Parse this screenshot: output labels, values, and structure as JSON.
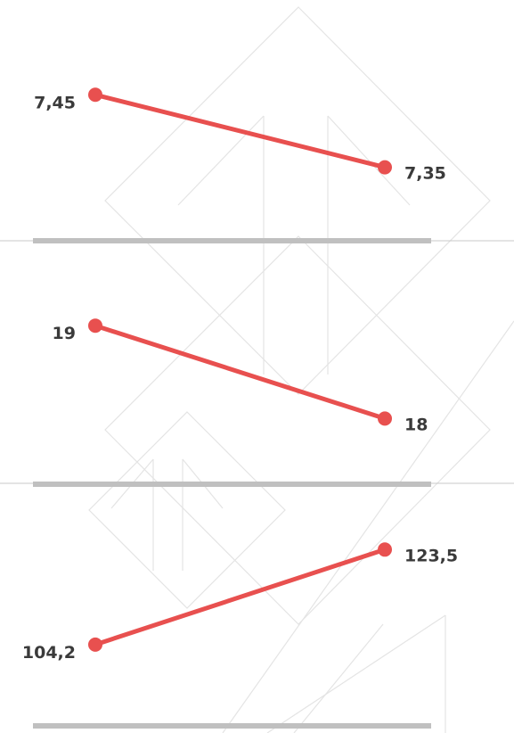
{
  "colors": {
    "line": "#e8504f",
    "baseline": "#c0c0c0",
    "divider": "#c8c8c8",
    "pattern": "#e4e4e4",
    "label": "#3a3a3a"
  },
  "chart_data": [
    {
      "type": "line",
      "x": [
        1,
        2
      ],
      "values": [
        7.45,
        7.35
      ],
      "data_labels": [
        "7,45",
        "7,35"
      ],
      "ylim": [
        7.32,
        7.47
      ]
    },
    {
      "type": "line",
      "x": [
        1,
        2
      ],
      "values": [
        19,
        18
      ],
      "data_labels": [
        "19",
        "18"
      ],
      "ylim": [
        17.85,
        19.05
      ]
    },
    {
      "type": "line",
      "x": [
        1,
        2
      ],
      "values": [
        104.2,
        123.5
      ],
      "data_labels": [
        "104,2",
        "123,5"
      ],
      "ylim": [
        102.0,
        125.0
      ]
    }
  ]
}
